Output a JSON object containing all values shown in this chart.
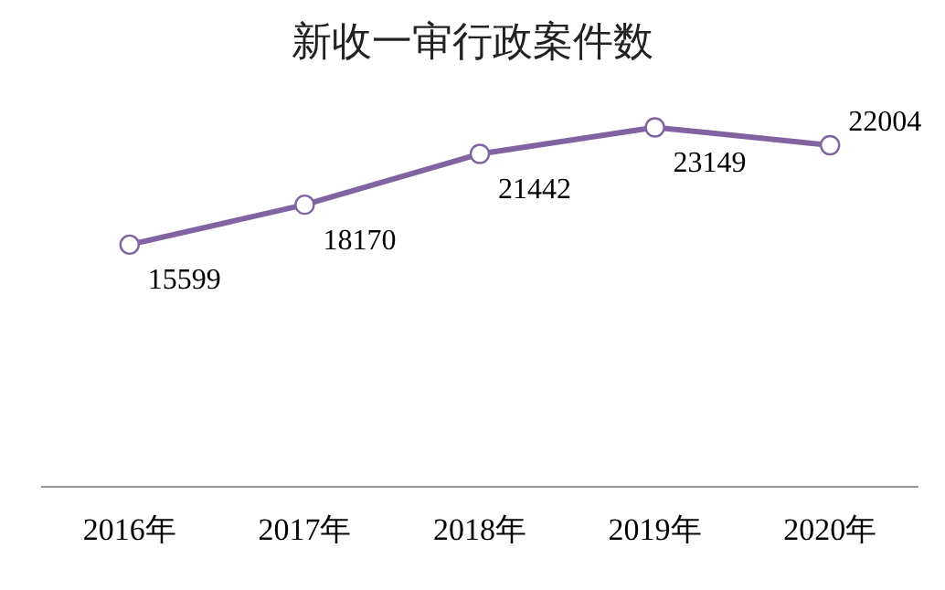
{
  "chart_data": {
    "type": "line",
    "title": "新收一审行政案件数",
    "categories": [
      "2016年",
      "2017年",
      "2018年",
      "2019年",
      "2020年"
    ],
    "series": [
      {
        "color": "#8064a2",
        "values": [
          15599,
          18170,
          21442,
          23149,
          22004
        ]
      }
    ],
    "tick_labels": "x",
    "grid": false,
    "legend": false,
    "marker": "circle",
    "line_style": "solid",
    "data_labels": true
  }
}
